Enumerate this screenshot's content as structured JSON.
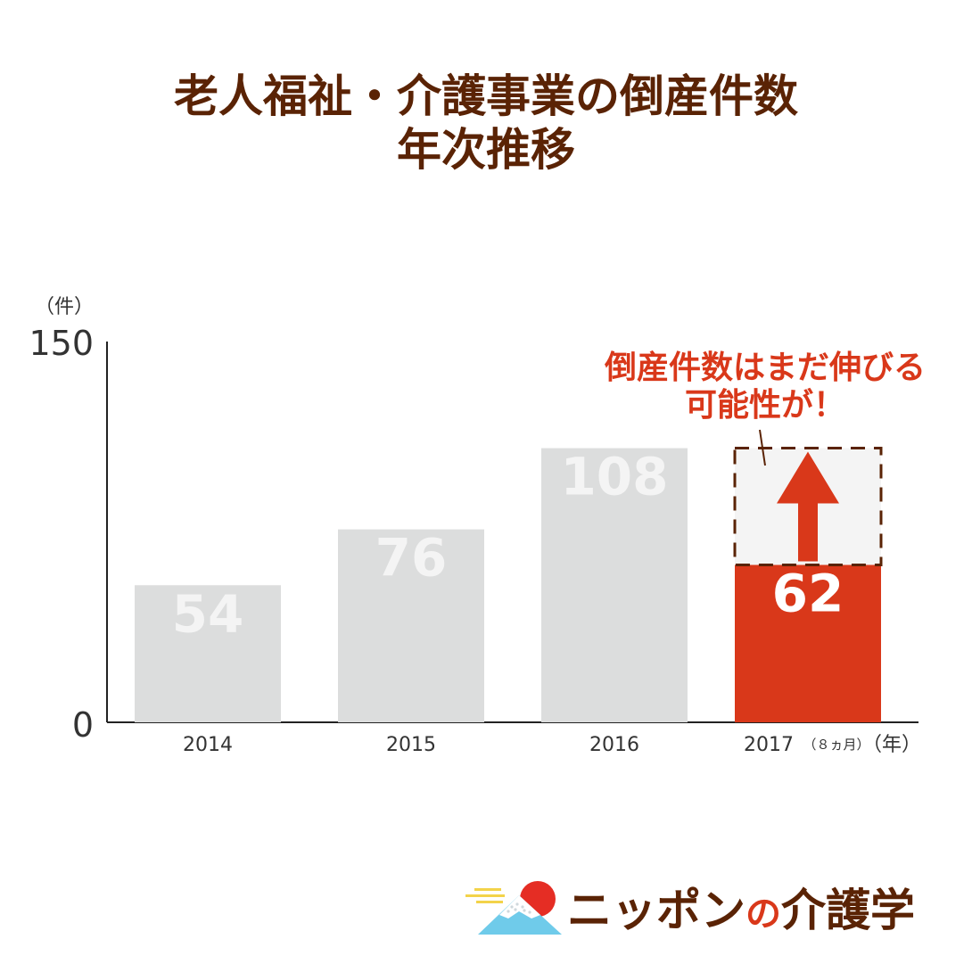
{
  "title": {
    "line1": "老人福祉・介護事業の倒産件数",
    "line2": "年次推移"
  },
  "chart_data": {
    "type": "bar",
    "y_unit_label": "（件）",
    "x_unit_label": "（年）",
    "ylim": [
      0,
      150
    ],
    "y_ticks": [
      "0",
      "150"
    ],
    "categories": [
      "2014",
      "2015",
      "2016",
      "2017"
    ],
    "category_note": "（８ヵ月）",
    "values": [
      54,
      76,
      108,
      62
    ],
    "value_labels": [
      "54",
      "76",
      "108",
      "62"
    ],
    "highlight_index": 3,
    "projection_top": 108,
    "annotation": {
      "line1": "倒産件数はまだ伸びる",
      "line2": "可能性が！"
    },
    "colors": {
      "bar": "#dcdddd",
      "bar_label": "#f4f4f4",
      "highlight": "#d9381a",
      "highlight_label": "#ffffff",
      "projection_fill": "#f4f4f4",
      "projection_border": "#5a2305",
      "annotation_text": "#d9381a",
      "axis": "#222222"
    }
  },
  "logo": {
    "part1": "ニッポン",
    "part2": "の",
    "part3": "介護学"
  }
}
